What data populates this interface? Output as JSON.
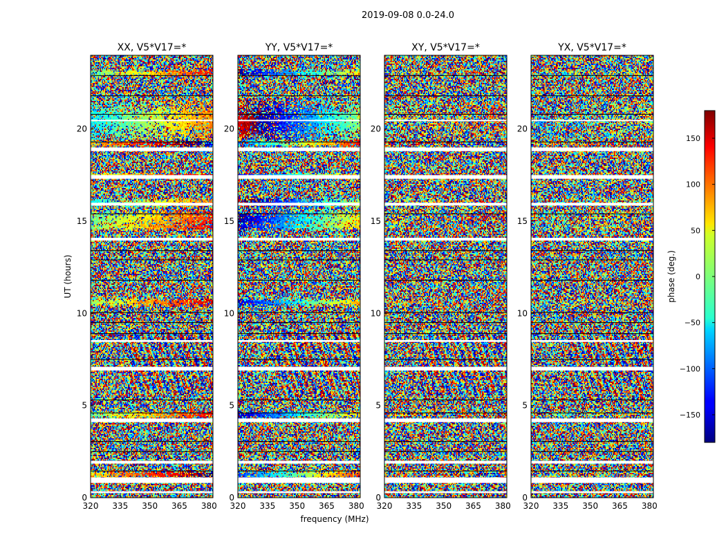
{
  "chart_data": {
    "type": "heatmap",
    "suptitle": "2019-09-08 0.0-24.0",
    "xlabel": "frequency (MHz)",
    "ylabel": "UT (hours)",
    "xlim": [
      320,
      382
    ],
    "ylim": [
      0,
      24
    ],
    "x_ticks": [
      320,
      335,
      350,
      365,
      380
    ],
    "y_ticks": [
      0,
      5,
      10,
      15,
      20
    ],
    "colormap": "jet",
    "colorbar": {
      "label": "phase (deg.)",
      "range": [
        -180,
        180
      ],
      "ticks": [
        150,
        100,
        50,
        0,
        -50,
        -100,
        -150
      ],
      "tick_labels": [
        "150",
        "100",
        "50",
        "0",
        "−50",
        "−100",
        "−150"
      ]
    },
    "panels": [
      {
        "title": "XX, V5*V17=*",
        "pol": "XX",
        "structure": 0.85,
        "offset": 0
      },
      {
        "title": "YY, V5*V17=*",
        "pol": "YY",
        "structure": 0.9,
        "offset": -120
      },
      {
        "title": "XY, V5*V17=*",
        "pol": "XY",
        "structure": 0.15,
        "offset": 40
      },
      {
        "title": "YX, V5*V17=*",
        "pol": "YX",
        "structure": 0.2,
        "offset": -40
      }
    ],
    "flagged_time_intervals_hours": [
      [
        0.25,
        0.35
      ],
      [
        0.8,
        1.1
      ],
      [
        1.85,
        2.0
      ],
      [
        4.1,
        4.3
      ],
      [
        6.9,
        7.1
      ],
      [
        8.45,
        8.55
      ],
      [
        13.95,
        14.1
      ],
      [
        15.85,
        16.0
      ],
      [
        17.3,
        17.5
      ],
      [
        18.8,
        19.0
      ],
      [
        20.45,
        20.5
      ]
    ],
    "grid_lines_hours": [
      1.45,
      2.5,
      3.05,
      4.6,
      5.3,
      7.5,
      8.9,
      9.5,
      10.05,
      11.8,
      12.9,
      13.4,
      15.4,
      19.3,
      20.8,
      21.8,
      22.9
    ]
  }
}
